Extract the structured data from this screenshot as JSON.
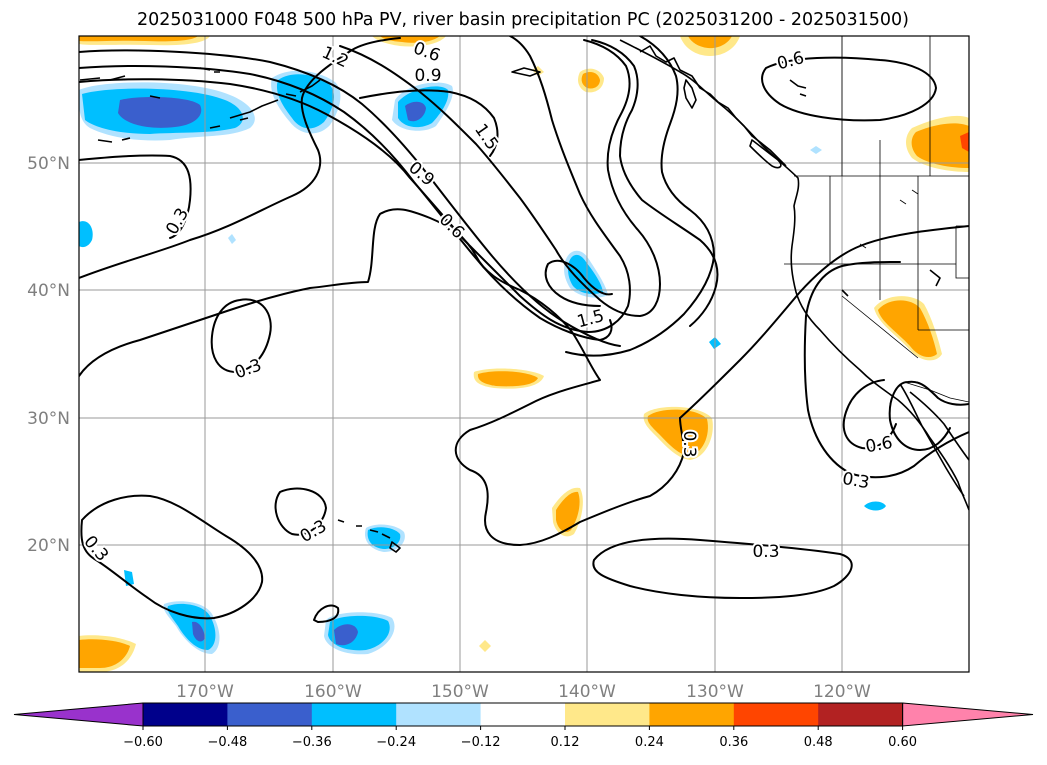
{
  "title": "2025031000 F048 500 hPa PV, river basin precipitation PC (2025031200 - 2025031500)",
  "lat_labels": [
    "50°N",
    "40°N",
    "30°N",
    "20°N"
  ],
  "lon_labels": [
    "170°W",
    "160°W",
    "150°W",
    "140°W",
    "130°W",
    "120°W"
  ],
  "colorbar": {
    "ticks": [
      "−0.60",
      "−0.48",
      "−0.36",
      "−0.24",
      "−0.12",
      "0.12",
      "0.24",
      "0.36",
      "0.48",
      "0.60"
    ],
    "colors": [
      "#9932CC",
      "#00008B",
      "#3A5FCD",
      "#00BFFF",
      "#B0E2FF",
      "#FFFFFF",
      "#FFE88A",
      "#FFA500",
      "#FF4500",
      "#B22222",
      "#FF82AB"
    ]
  },
  "contour_labels": [
    "0.6",
    "0.9",
    "1.2",
    "1.5",
    "0.9",
    "0.6",
    "0.3",
    "0.3",
    "1.5",
    "0.3",
    "0.6",
    "0.6",
    "0.3",
    "0.3",
    "0.3",
    "0.3"
  ],
  "fill_colors": {
    "neg_strong": "#3A5FCD",
    "neg": "#00BFFF",
    "neg_light": "#B0E2FF",
    "pos_light": "#FFE88A",
    "pos": "#FFA500"
  }
}
